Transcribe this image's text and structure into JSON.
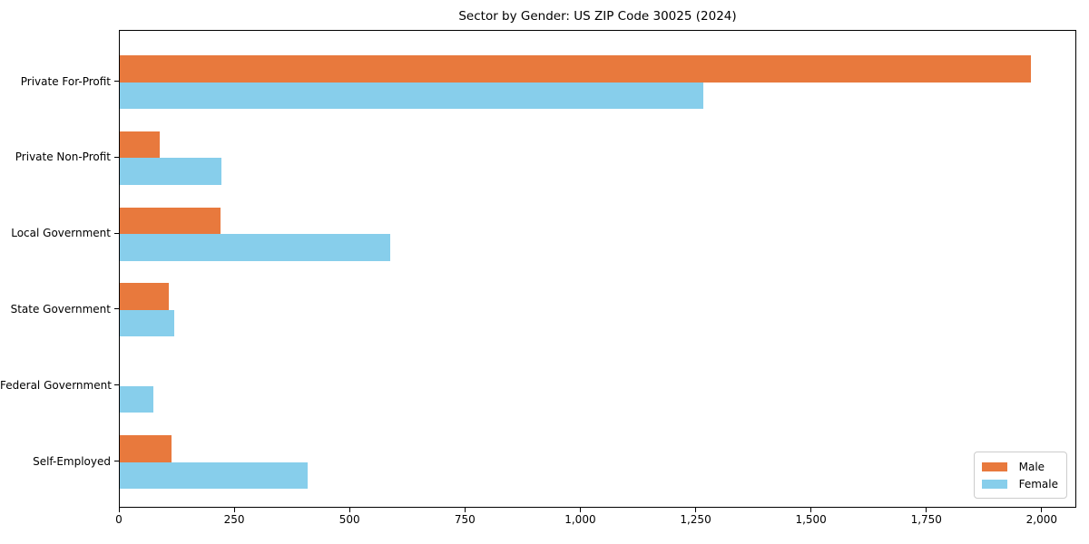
{
  "figure": {
    "title": "Sector by Gender: US ZIP Code 30025 (2024)"
  },
  "chart_data": {
    "type": "bar",
    "orientation": "horizontal",
    "title": "Sector by Gender: US ZIP Code 30025 (2024)",
    "categories": [
      "Private For-Profit",
      "Private Non-Profit",
      "Local Government",
      "State Government",
      "Federal Government",
      "Self-Employed"
    ],
    "series": [
      {
        "name": "Male",
        "color": "#E8793D",
        "values": [
          1975,
          87,
          219,
          106,
          0,
          112
        ]
      },
      {
        "name": "Female",
        "color": "#87CEEB",
        "values": [
          1264,
          220,
          587,
          118,
          72,
          407
        ]
      }
    ],
    "xlabel": "",
    "ylabel": "",
    "xlim": [
      0,
      2075
    ],
    "x_ticks": [
      0,
      250,
      500,
      750,
      1000,
      1250,
      1500,
      1750,
      2000
    ],
    "x_tick_labels": [
      "0",
      "250",
      "500",
      "750",
      "1,000",
      "1,250",
      "1,500",
      "1,750",
      "2,000"
    ],
    "grid": false,
    "legend": {
      "position": "lower right",
      "entries": [
        "Male",
        "Female"
      ]
    }
  }
}
